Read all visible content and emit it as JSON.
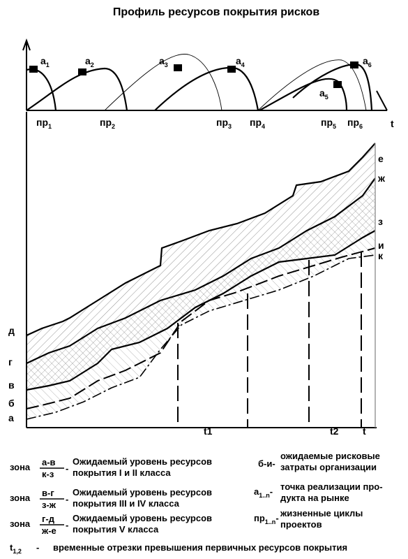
{
  "title": "Профиль ресурсов покрытия рисков",
  "top_chart": {
    "peak_labels": [
      {
        "base": "а",
        "sub": "1"
      },
      {
        "base": "а",
        "sub": "2"
      },
      {
        "base": "а",
        "sub": "3"
      },
      {
        "base": "а",
        "sub": "4"
      },
      {
        "base": "а",
        "sub": "5"
      },
      {
        "base": "а",
        "sub": "6"
      }
    ],
    "cycle_labels": [
      {
        "base": "пр",
        "sub": "1"
      },
      {
        "base": "пр",
        "sub": "2"
      },
      {
        "base": "пр",
        "sub": "3"
      },
      {
        "base": "пр",
        "sub": "4"
      },
      {
        "base": "пр",
        "sub": "5"
      },
      {
        "base": "пр",
        "sub": "6"
      }
    ],
    "axis_label": "t"
  },
  "main_chart": {
    "left_labels": [
      "д",
      "г",
      "в",
      "б",
      "а"
    ],
    "right_labels": [
      "е",
      "ж",
      "з",
      "и",
      "к"
    ],
    "time_labels": [
      "t1",
      "t2",
      "t"
    ]
  },
  "legend": {
    "zones": [
      {
        "prefix": "зона",
        "numerator": "а-в",
        "denominator": "к-з",
        "dash": "-",
        "lines": [
          "Ожидаемый уровень ресурсов",
          "покрытия I и II класса"
        ]
      },
      {
        "prefix": "зона",
        "numerator": "в-г",
        "denominator": "з-ж",
        "dash": "-",
        "lines": [
          "Ожидаемый уровень ресурсов",
          "покрытия III и IV класса"
        ]
      },
      {
        "prefix": "зона",
        "numerator": "г-д",
        "denominator": "ж-е",
        "dash": "-",
        "lines": [
          "Ожидаемый уровень ресурсов",
          "покрытия V класса"
        ]
      }
    ],
    "terms": [
      {
        "term": "б-и-",
        "lines": [
          "ожидаемые рисковые",
          "затраты организации"
        ]
      },
      {
        "term": {
          "base": "а",
          "sub": "1..n",
          "suffix": "-"
        },
        "lines": [
          "точка реализации про-",
          "дукта на рынке"
        ]
      },
      {
        "term": {
          "base": "пр",
          "sub": "1..n",
          "suffix": "-"
        },
        "lines": [
          "жизненные циклы",
          "проектов"
        ]
      }
    ],
    "footnote": {
      "term": {
        "base": "t",
        "sub": "1,2"
      },
      "dash": "-",
      "text": "временные отрезки превышения первичных ресурсов покрытия"
    }
  }
}
